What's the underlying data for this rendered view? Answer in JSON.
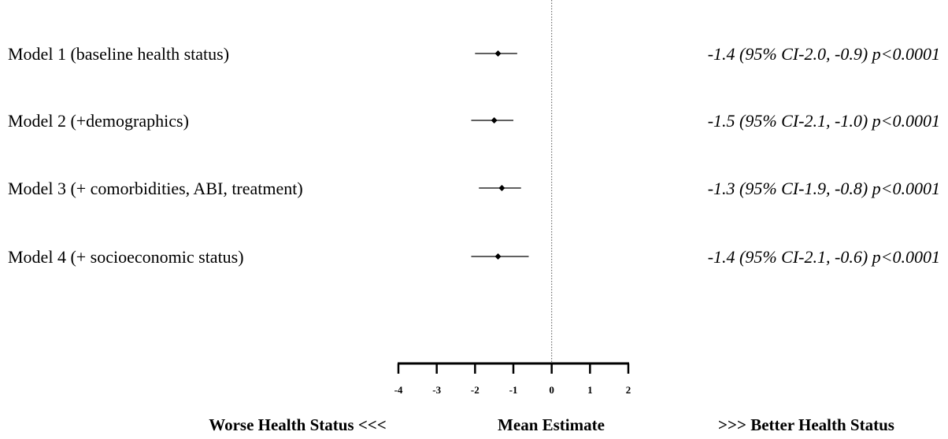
{
  "chart_data": {
    "type": "forest",
    "rows": [
      {
        "label": "Model 1 (baseline health status)",
        "estimate": -1.4,
        "ci_low": -2.0,
        "ci_high": -0.9,
        "stat_text": "-1.4 (95% CI-2.0, -0.9) p<0.0001"
      },
      {
        "label": "Model 2 (+demographics)",
        "estimate": -1.5,
        "ci_low": -2.1,
        "ci_high": -1.0,
        "stat_text": "-1.5 (95% CI-2.1, -1.0) p<0.0001"
      },
      {
        "label": "Model 3 (+ comorbidities, ABI, treatment)",
        "estimate": -1.3,
        "ci_low": -1.9,
        "ci_high": -0.8,
        "stat_text": "-1.3 (95% CI-1.9, -0.8) p<0.0001"
      },
      {
        "label": "Model 4 (+ socioeconomic status)",
        "estimate": -1.4,
        "ci_low": -2.1,
        "ci_high": -0.6,
        "stat_text": "-1.4 (95% CI-2.1, -0.6) p<0.0001"
      }
    ],
    "xlim": [
      -4,
      2
    ],
    "xticks": [
      -4,
      -3,
      -2,
      -1,
      0,
      1,
      2
    ],
    "xtick_labels": [
      "-4",
      "-3",
      "-2",
      "-1",
      "0",
      "1",
      "2"
    ],
    "reference_line": 0,
    "footer": {
      "left": "Worse Health Status <<<",
      "center": "Mean Estimate",
      "right": ">>> Better Health Status"
    },
    "marker_color": "#000000",
    "line_color": "#000000"
  }
}
